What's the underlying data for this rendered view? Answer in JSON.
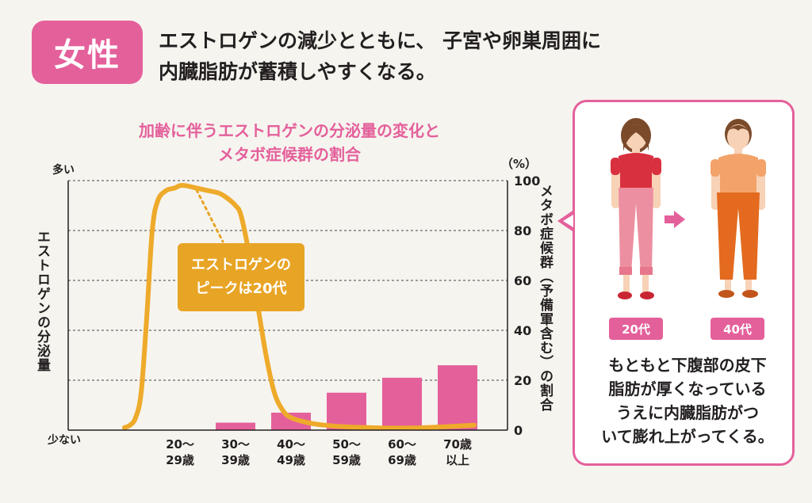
{
  "header": {
    "badge": "女性",
    "headline_line1": "エストロゲンの減少とともに、 子宮や卵巣周囲に",
    "headline_line2": "内臓脂肪が蓄積しやすくなる。"
  },
  "chart_data": {
    "type": "bar",
    "title_line1": "加齢に伴うエストロゲンの分泌量の変化と",
    "title_line2": "メタボ症候群の割合",
    "categories": [
      {
        "line1": "20～",
        "line2": "29歳"
      },
      {
        "line1": "30～",
        "line2": "39歳"
      },
      {
        "line1": "40～",
        "line2": "49歳"
      },
      {
        "line1": "50～",
        "line2": "59歳"
      },
      {
        "line1": "60～",
        "line2": "69歳"
      },
      {
        "line1": "70歳",
        "line2": "以上"
      }
    ],
    "series": [
      {
        "name": "メタボ症候群（予備軍含む）の割合",
        "values": [
          null,
          3,
          7,
          15,
          21,
          26
        ]
      }
    ],
    "estrogen_curve": [
      [
        0,
        1
      ],
      [
        0.1,
        2
      ],
      [
        0.2,
        5
      ],
      [
        0.3,
        15
      ],
      [
        0.4,
        45
      ],
      [
        0.5,
        80
      ],
      [
        0.6,
        92
      ],
      [
        0.75,
        96
      ],
      [
        0.9,
        97
      ],
      [
        1.0,
        98
      ],
      [
        1.1,
        98
      ],
      [
        1.3,
        97
      ],
      [
        1.5,
        96
      ],
      [
        1.7,
        95
      ],
      [
        1.85,
        93
      ],
      [
        2.0,
        90
      ],
      [
        2.1,
        86
      ],
      [
        2.25,
        70
      ],
      [
        2.4,
        50
      ],
      [
        2.55,
        30
      ],
      [
        2.7,
        15
      ],
      [
        2.85,
        8
      ],
      [
        3.0,
        5
      ],
      [
        3.3,
        3
      ],
      [
        3.6,
        2
      ],
      [
        4.0,
        1.3
      ],
      [
        4.4,
        1
      ],
      [
        4.9,
        0.8
      ],
      [
        5.4,
        1
      ],
      [
        5.9,
        1.5
      ],
      [
        6.3,
        2
      ]
    ],
    "y_left_label": "エストロゲンの分泌量",
    "y_left_top": "多い",
    "y_left_bottom": "少ない",
    "y_right_unit": "（%）",
    "y_right_label": "メタボ症候群（予備軍含む）の割合",
    "y_right_ticks": [
      "0",
      "20",
      "40",
      "60",
      "80",
      "100"
    ],
    "ylim": [
      0,
      100
    ],
    "grid": true,
    "curve_color": "#eeaa2a",
    "bar_color": "#e4609b",
    "callout_line1": "エストロゲンの",
    "callout_line2": "ピークは20代"
  },
  "panel": {
    "age_before": "20代",
    "age_after": "40代",
    "text_line1": "もともと下腹部の皮下",
    "text_line2": "脂肪が厚くなっている",
    "text_line3": "うえに内臓脂肪がつ",
    "text_line4": "いて膨れ上がってくる。"
  }
}
